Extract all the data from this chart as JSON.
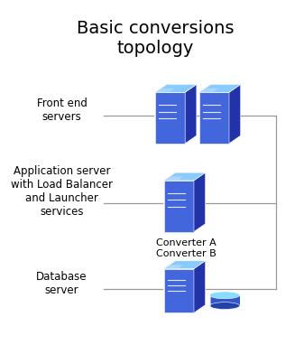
{
  "title": "Basic conversions\ntopology",
  "title_fontsize": 14,
  "bg_color": "#ffffff",
  "figsize": [
    3.37,
    3.92
  ],
  "dpi": 100,
  "labels": {
    "front_end": "Front end\nservers",
    "app_server": "Application server\nwith Load Balancer\nand Launcher\nservices",
    "database": "Database\nserver",
    "converter": "Converter A\nConverter B"
  },
  "line_color": "#999999",
  "label_fontsize": 8.5,
  "converter_label_fontsize": 8,
  "server_front_color": "#4466dd",
  "server_side_color": "#2233aa",
  "server_top_color": "#88ccff",
  "server_top_light": "#bbddff",
  "disk_top_color": "#88ddff",
  "disk_body_color": "#3355cc",
  "disk_bottom_color": "#2244aa"
}
